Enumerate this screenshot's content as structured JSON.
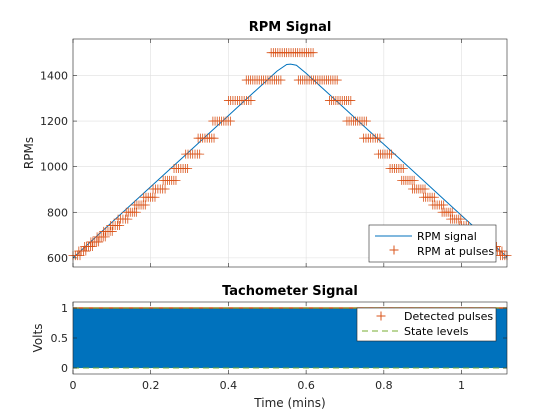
{
  "chart_data": [
    {
      "type": "line",
      "title": "RPM Signal",
      "xlabel": "",
      "ylabel": "RPMs",
      "xlim": [
        0,
        1.117
      ],
      "ylim": [
        560,
        1560
      ],
      "x_ticks": [
        0,
        0.2,
        0.4,
        0.6,
        0.8,
        1
      ],
      "x_tick_labels": [
        "",
        "",
        "",
        "",
        "",
        ""
      ],
      "y_ticks": [
        600,
        800,
        1000,
        1200,
        1400
      ],
      "y_tick_labels": [
        "600",
        "800",
        "1000",
        "1200",
        "1400"
      ],
      "grid": true,
      "legend_position": "bottom-right",
      "series": [
        {
          "name": "RPM signal",
          "style": "line",
          "color": "#0072BD",
          "x": [
            0,
            0.05,
            0.1,
            0.15,
            0.2,
            0.25,
            0.3,
            0.35,
            0.4,
            0.45,
            0.5,
            0.525,
            0.55,
            0.56,
            0.575,
            0.6,
            0.625,
            0.65,
            0.7,
            0.75,
            0.8,
            0.85,
            0.9,
            0.95,
            1.0,
            1.05,
            1.1,
            1.117
          ],
          "values": [
            600,
            678,
            756,
            834,
            912,
            990,
            1068,
            1146,
            1224,
            1302,
            1380,
            1419,
            1448,
            1450,
            1445,
            1410,
            1371,
            1332,
            1254,
            1176,
            1098,
            1020,
            942,
            864,
            786,
            708,
            630,
            604
          ]
        },
        {
          "name": "RPM at pulses",
          "style": "markers",
          "marker": "+",
          "color": "#D95319",
          "steps": [
            {
              "x0": 0.0,
              "x1": 0.018,
              "y": 610
            },
            {
              "x0": 0.015,
              "x1": 0.033,
              "y": 630
            },
            {
              "x0": 0.03,
              "x1": 0.05,
              "y": 650
            },
            {
              "x0": 0.046,
              "x1": 0.066,
              "y": 670
            },
            {
              "x0": 0.062,
              "x1": 0.083,
              "y": 692
            },
            {
              "x0": 0.079,
              "x1": 0.101,
              "y": 716
            },
            {
              "x0": 0.097,
              "x1": 0.12,
              "y": 742
            },
            {
              "x0": 0.116,
              "x1": 0.141,
              "y": 770
            },
            {
              "x0": 0.137,
              "x1": 0.163,
              "y": 800
            },
            {
              "x0": 0.159,
              "x1": 0.186,
              "y": 832
            },
            {
              "x0": 0.182,
              "x1": 0.211,
              "y": 866
            },
            {
              "x0": 0.206,
              "x1": 0.237,
              "y": 902
            },
            {
              "x0": 0.232,
              "x1": 0.265,
              "y": 940
            },
            {
              "x0": 0.26,
              "x1": 0.295,
              "y": 992
            },
            {
              "x0": 0.29,
              "x1": 0.326,
              "y": 1055
            },
            {
              "x0": 0.322,
              "x1": 0.363,
              "y": 1125
            },
            {
              "x0": 0.36,
              "x1": 0.405,
              "y": 1200
            },
            {
              "x0": 0.4,
              "x1": 0.458,
              "y": 1290
            },
            {
              "x0": 0.446,
              "x1": 0.535,
              "y": 1380
            },
            {
              "x0": 0.51,
              "x1": 0.618,
              "y": 1500
            },
            {
              "x0": 0.58,
              "x1": 0.68,
              "y": 1380
            },
            {
              "x0": 0.66,
              "x1": 0.715,
              "y": 1290
            },
            {
              "x0": 0.705,
              "x1": 0.755,
              "y": 1200
            },
            {
              "x0": 0.748,
              "x1": 0.79,
              "y": 1125
            },
            {
              "x0": 0.786,
              "x1": 0.82,
              "y": 1055
            },
            {
              "x0": 0.816,
              "x1": 0.85,
              "y": 992
            },
            {
              "x0": 0.846,
              "x1": 0.878,
              "y": 940
            },
            {
              "x0": 0.874,
              "x1": 0.906,
              "y": 902
            },
            {
              "x0": 0.902,
              "x1": 0.93,
              "y": 866
            },
            {
              "x0": 0.926,
              "x1": 0.954,
              "y": 832
            },
            {
              "x0": 0.95,
              "x1": 0.976,
              "y": 800
            },
            {
              "x0": 0.972,
              "x1": 0.998,
              "y": 770
            },
            {
              "x0": 0.994,
              "x1": 1.018,
              "y": 742
            },
            {
              "x0": 1.014,
              "x1": 1.038,
              "y": 716
            },
            {
              "x0": 1.034,
              "x1": 1.056,
              "y": 692
            },
            {
              "x0": 1.052,
              "x1": 1.074,
              "y": 670
            },
            {
              "x0": 1.07,
              "x1": 1.09,
              "y": 650
            },
            {
              "x0": 1.086,
              "x1": 1.104,
              "y": 630
            },
            {
              "x0": 1.1,
              "x1": 1.117,
              "y": 610
            }
          ]
        }
      ]
    },
    {
      "type": "area",
      "title": "Tachometer Signal",
      "xlabel": "Time (mins)",
      "ylabel": "Volts",
      "xlim": [
        0,
        1.117
      ],
      "ylim": [
        -0.1,
        1.1
      ],
      "x_ticks": [
        0,
        0.2,
        0.4,
        0.6,
        0.8,
        1
      ],
      "x_tick_labels": [
        "0",
        "0.2",
        "0.4",
        "0.6",
        "0.8",
        "1"
      ],
      "y_ticks": [
        0,
        0.5,
        1
      ],
      "y_tick_labels": [
        "0",
        "0.5",
        "1"
      ],
      "grid": true,
      "legend_position": "top-right",
      "series": [
        {
          "name": "",
          "style": "dense-pulse-fill",
          "color": "#0072BD",
          "low": 0,
          "high": 1
        },
        {
          "name": "Detected pulses",
          "style": "markers",
          "marker": "+",
          "color": "#D95319",
          "y": 1
        },
        {
          "name": "State levels",
          "style": "dashed",
          "color": "#77AC30",
          "levels": [
            0,
            1
          ]
        }
      ]
    }
  ]
}
